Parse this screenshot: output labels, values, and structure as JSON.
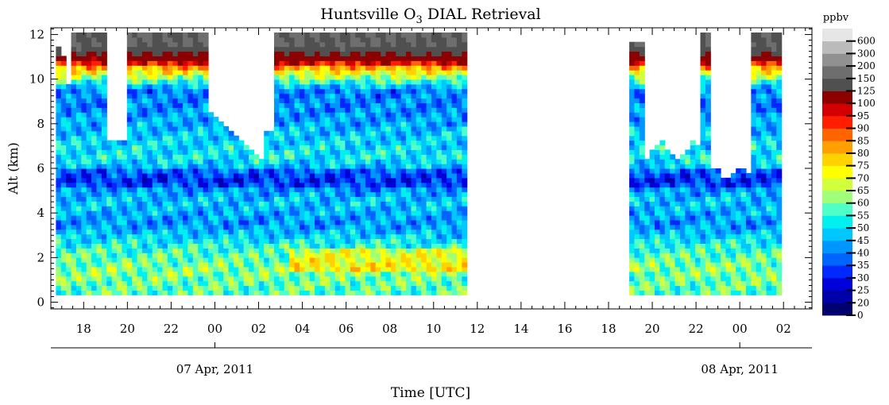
{
  "chart_data": {
    "type": "heatmap",
    "title_prefix": "Huntsville O",
    "title_subscript": "3",
    "title_suffix": " DIAL Retrieval",
    "xlabel": "Time [UTC]",
    "ylabel": "Alt (km)",
    "x_range_hours": [
      16.5,
      51.3
    ],
    "ylim": [
      -0.3,
      12.3
    ],
    "x_ticks": [
      {
        "h": 18,
        "label": "18"
      },
      {
        "h": 20,
        "label": "20"
      },
      {
        "h": 22,
        "label": "22"
      },
      {
        "h": 24,
        "label": "00"
      },
      {
        "h": 26,
        "label": "02"
      },
      {
        "h": 28,
        "label": "04"
      },
      {
        "h": 30,
        "label": "06"
      },
      {
        "h": 32,
        "label": "08"
      },
      {
        "h": 34,
        "label": "10"
      },
      {
        "h": 36,
        "label": "12"
      },
      {
        "h": 38,
        "label": "14"
      },
      {
        "h": 40,
        "label": "16"
      },
      {
        "h": 42,
        "label": "18"
      },
      {
        "h": 44,
        "label": "20"
      },
      {
        "h": 46,
        "label": "22"
      },
      {
        "h": 48,
        "label": "00"
      },
      {
        "h": 50,
        "label": "02"
      }
    ],
    "y_ticks": [
      {
        "v": 0,
        "label": "0"
      },
      {
        "v": 2,
        "label": "2"
      },
      {
        "v": 4,
        "label": "4"
      },
      {
        "v": 6,
        "label": "6"
      },
      {
        "v": 8,
        "label": "8"
      },
      {
        "v": 10,
        "label": "10"
      },
      {
        "v": 12,
        "label": "12"
      }
    ],
    "date_labels": [
      {
        "h": 24,
        "label": "07 Apr, 2011"
      },
      {
        "h": 48,
        "label": "08 Apr, 2011"
      }
    ],
    "colorbar": {
      "title": "ppbv",
      "levels": [
        {
          "label": "0",
          "color": "#00006e"
        },
        {
          "label": "20",
          "color": "#0000a8"
        },
        {
          "label": "25",
          "color": "#0000d8"
        },
        {
          "label": "30",
          "color": "#0028ff"
        },
        {
          "label": "35",
          "color": "#0064ff"
        },
        {
          "label": "40",
          "color": "#0096ff"
        },
        {
          "label": "45",
          "color": "#00c8ff"
        },
        {
          "label": "50",
          "color": "#00f0f0"
        },
        {
          "label": "55",
          "color": "#50ffc8"
        },
        {
          "label": "60",
          "color": "#a0ff78"
        },
        {
          "label": "65",
          "color": "#d2ff3c"
        },
        {
          "label": "70",
          "color": "#ffff00"
        },
        {
          "label": "75",
          "color": "#ffd200"
        },
        {
          "label": "80",
          "color": "#ffa000"
        },
        {
          "label": "85",
          "color": "#ff6400"
        },
        {
          "label": "90",
          "color": "#ff1e00"
        },
        {
          "label": "95",
          "color": "#d20000"
        },
        {
          "label": "100",
          "color": "#8c0000"
        },
        {
          "label": "125",
          "color": "#505050"
        },
        {
          "label": "150",
          "color": "#6e6e6e"
        },
        {
          "label": "200",
          "color": "#919191"
        },
        {
          "label": "300",
          "color": "#bbbbbb"
        },
        {
          "label": "600",
          "color": "#e6e6e6"
        }
      ]
    },
    "data_segments_hours": [
      [
        16.8,
        35.6
      ],
      [
        43.0,
        49.9
      ]
    ],
    "profile_bottom_km": 0.35,
    "typical_profile_ppbv": [
      {
        "alt_km": 0.5,
        "ppbv": 58
      },
      {
        "alt_km": 1.5,
        "ppbv": 62
      },
      {
        "alt_km": 2.5,
        "ppbv": 55
      },
      {
        "alt_km": 3.5,
        "ppbv": 42
      },
      {
        "alt_km": 4.5,
        "ppbv": 48
      },
      {
        "alt_km": 5.5,
        "ppbv": 38
      },
      {
        "alt_km": 6.5,
        "ppbv": 52
      },
      {
        "alt_km": 7.5,
        "ppbv": 48
      },
      {
        "alt_km": 8.5,
        "ppbv": 42
      },
      {
        "alt_km": 9.5,
        "ppbv": 40
      },
      {
        "alt_km": 10.5,
        "ppbv": 80
      },
      {
        "alt_km": 11.5,
        "ppbv": 150
      }
    ]
  }
}
